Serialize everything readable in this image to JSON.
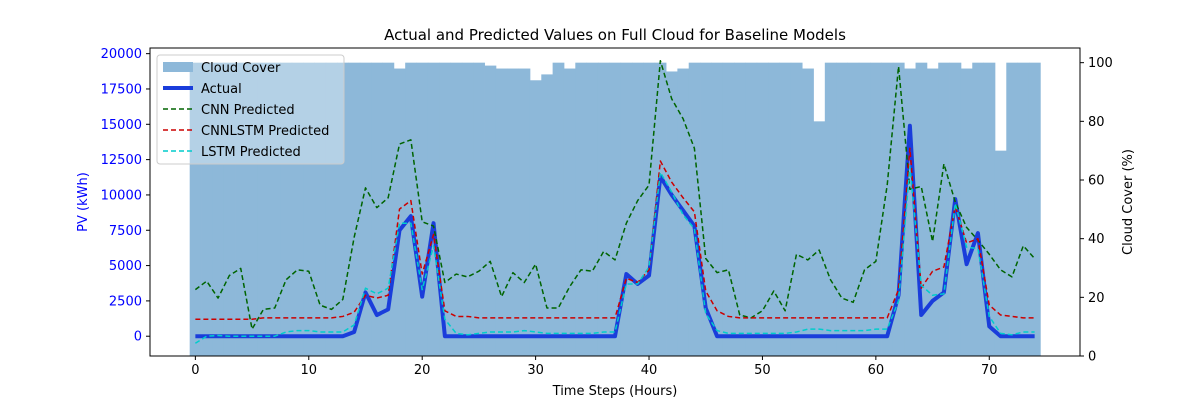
{
  "chart_data": {
    "type": "line",
    "title": "Actual and Predicted Values on Full Cloud for Baseline Models",
    "xlabel": "Time Steps (Hours)",
    "ylabel": "PV (kWh)",
    "y2label": "Cloud Cover (%)",
    "xlim": [
      -4,
      78
    ],
    "ylim": [
      -1400,
      20400
    ],
    "y2lim": [
      0,
      105
    ],
    "xticks": [
      0,
      10,
      20,
      30,
      40,
      50,
      60,
      70
    ],
    "yticks": [
      0,
      2500,
      5000,
      7500,
      10000,
      12500,
      15000,
      17500,
      20000
    ],
    "y2ticks": [
      0,
      20,
      40,
      60,
      80,
      100
    ],
    "grid": false,
    "legend_position": "top-left",
    "colors": {
      "cloud": "#8db8d9",
      "actual": "#1a3ddb",
      "cnn": "#006400",
      "cnnlstm": "#cc0000",
      "lstm": "#00cccc",
      "left_axis": "#0000ff",
      "axis": "#000000"
    },
    "legend": [
      {
        "label": "Cloud Cover",
        "key": "cloud",
        "style": "patch"
      },
      {
        "label": "Actual",
        "key": "actual",
        "style": "thick"
      },
      {
        "label": "CNN Predicted",
        "key": "cnn",
        "style": "dashed"
      },
      {
        "label": "CNNLSTM Predicted",
        "key": "cnnlstm",
        "style": "dashed"
      },
      {
        "label": "LSTM Predicted",
        "key": "lstm",
        "style": "dashed"
      }
    ],
    "cloud_cover": [
      100,
      100,
      100,
      100,
      100,
      100,
      100,
      100,
      100,
      100,
      100,
      100,
      100,
      100,
      100,
      100,
      100,
      100,
      98,
      100,
      100,
      100,
      100,
      100,
      100,
      100,
      99,
      98,
      98,
      98,
      94,
      96,
      100,
      98,
      100,
      100,
      100,
      100,
      100,
      100,
      100,
      100,
      97,
      98,
      100,
      100,
      100,
      100,
      100,
      100,
      100,
      100,
      100,
      100,
      98,
      80,
      100,
      100,
      100,
      100,
      100,
      100,
      100,
      98,
      100,
      98,
      100,
      100,
      98,
      100,
      100,
      70,
      100,
      100,
      100
    ],
    "series": [
      {
        "name": "Actual",
        "key": "actual",
        "width": 4,
        "dash": "",
        "values": [
          0,
          0,
          0,
          0,
          0,
          0,
          0,
          0,
          0,
          0,
          0,
          0,
          0,
          0,
          300,
          3100,
          1500,
          1900,
          7500,
          8500,
          2800,
          8000,
          0,
          0,
          0,
          0,
          0,
          0,
          0,
          0,
          0,
          0,
          0,
          0,
          0,
          0,
          0,
          0,
          4400,
          3700,
          4300,
          11300,
          10000,
          8900,
          7800,
          2000,
          0,
          0,
          0,
          0,
          0,
          0,
          0,
          0,
          0,
          0,
          0,
          0,
          0,
          0,
          0,
          0,
          2900,
          14900,
          1500,
          2500,
          3100,
          9700,
          5100,
          7300,
          700,
          0,
          0,
          0,
          0
        ]
      },
      {
        "name": "CNN Predicted",
        "key": "cnn",
        "width": 1.5,
        "dash": "5,3",
        "values": [
          3300,
          3900,
          2700,
          4300,
          4800,
          500,
          1900,
          2000,
          4000,
          4700,
          4600,
          2200,
          1900,
          2600,
          7000,
          10500,
          9100,
          9800,
          13600,
          13900,
          8100,
          7800,
          3800,
          4400,
          4200,
          4600,
          5300,
          2800,
          4500,
          3800,
          5100,
          2000,
          2000,
          3500,
          4700,
          4600,
          6000,
          5400,
          8000,
          9600,
          10700,
          19500,
          16800,
          15400,
          13300,
          5500,
          4500,
          4700,
          1500,
          1300,
          1800,
          3200,
          1800,
          5800,
          5400,
          6100,
          4000,
          2700,
          2400,
          4700,
          5300,
          10700,
          19100,
          10400,
          10600,
          6700,
          12200,
          9500,
          7700,
          6800,
          5800,
          4700,
          4200,
          6400,
          5500
        ]
      },
      {
        "name": "CNNLSTM Predicted",
        "key": "cnnlstm",
        "width": 1.5,
        "dash": "5,3",
        "values": [
          1200,
          1200,
          1200,
          1200,
          1200,
          1200,
          1300,
          1300,
          1300,
          1300,
          1300,
          1300,
          1300,
          1400,
          1700,
          2900,
          2700,
          2900,
          9000,
          9600,
          4400,
          7200,
          1800,
          1400,
          1400,
          1300,
          1300,
          1300,
          1300,
          1300,
          1300,
          1300,
          1300,
          1300,
          1300,
          1300,
          1300,
          1300,
          4100,
          3800,
          4700,
          12400,
          10900,
          9800,
          8800,
          3200,
          1800,
          1400,
          1300,
          1300,
          1300,
          1300,
          1300,
          1300,
          1300,
          1300,
          1300,
          1300,
          1300,
          1300,
          1300,
          1300,
          3300,
          13300,
          3400,
          4600,
          4900,
          9200,
          6600,
          6900,
          2200,
          1500,
          1400,
          1300,
          1300
        ]
      },
      {
        "name": "LSTM Predicted",
        "key": "lstm",
        "width": 1.5,
        "dash": "5,3",
        "values": [
          -500,
          0,
          50,
          0,
          0,
          0,
          0,
          0,
          300,
          400,
          400,
          300,
          300,
          300,
          800,
          3400,
          3000,
          3400,
          8000,
          8000,
          3300,
          6400,
          1200,
          200,
          100,
          200,
          300,
          300,
          300,
          400,
          300,
          200,
          200,
          200,
          200,
          200,
          300,
          300,
          3700,
          3700,
          4900,
          11600,
          10200,
          8600,
          7600,
          1600,
          400,
          200,
          200,
          200,
          200,
          200,
          200,
          300,
          500,
          500,
          400,
          400,
          400,
          400,
          500,
          500,
          2500,
          12000,
          3600,
          2900,
          3000,
          9400,
          6300,
          6200,
          1400,
          200,
          100,
          300,
          300
        ]
      }
    ]
  }
}
